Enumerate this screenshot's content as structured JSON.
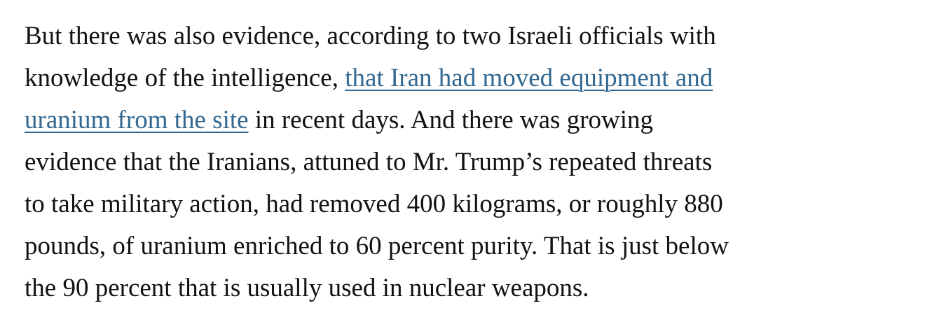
{
  "paragraph": {
    "lines": [
      [
        {
          "text": "But there was also evidence, according to two Israeli officials with"
        }
      ],
      [
        {
          "text": "knowledge of the intelligence, "
        },
        {
          "text": "that Iran had moved equipment and",
          "link": true
        }
      ],
      [
        {
          "text": "uranium from the site",
          "link": true
        },
        {
          "text": " in recent days. And there was growing"
        }
      ],
      [
        {
          "text": "evidence that the Iranians, attuned to Mr. Trump’s repeated threats"
        }
      ],
      [
        {
          "text": "to take military action, had removed 400 kilograms, or roughly 880"
        }
      ],
      [
        {
          "text": "pounds, of uranium enriched to 60 percent purity. That is just below"
        }
      ],
      [
        {
          "text": "the 90 percent that is usually used in nuclear weapons."
        }
      ]
    ]
  }
}
